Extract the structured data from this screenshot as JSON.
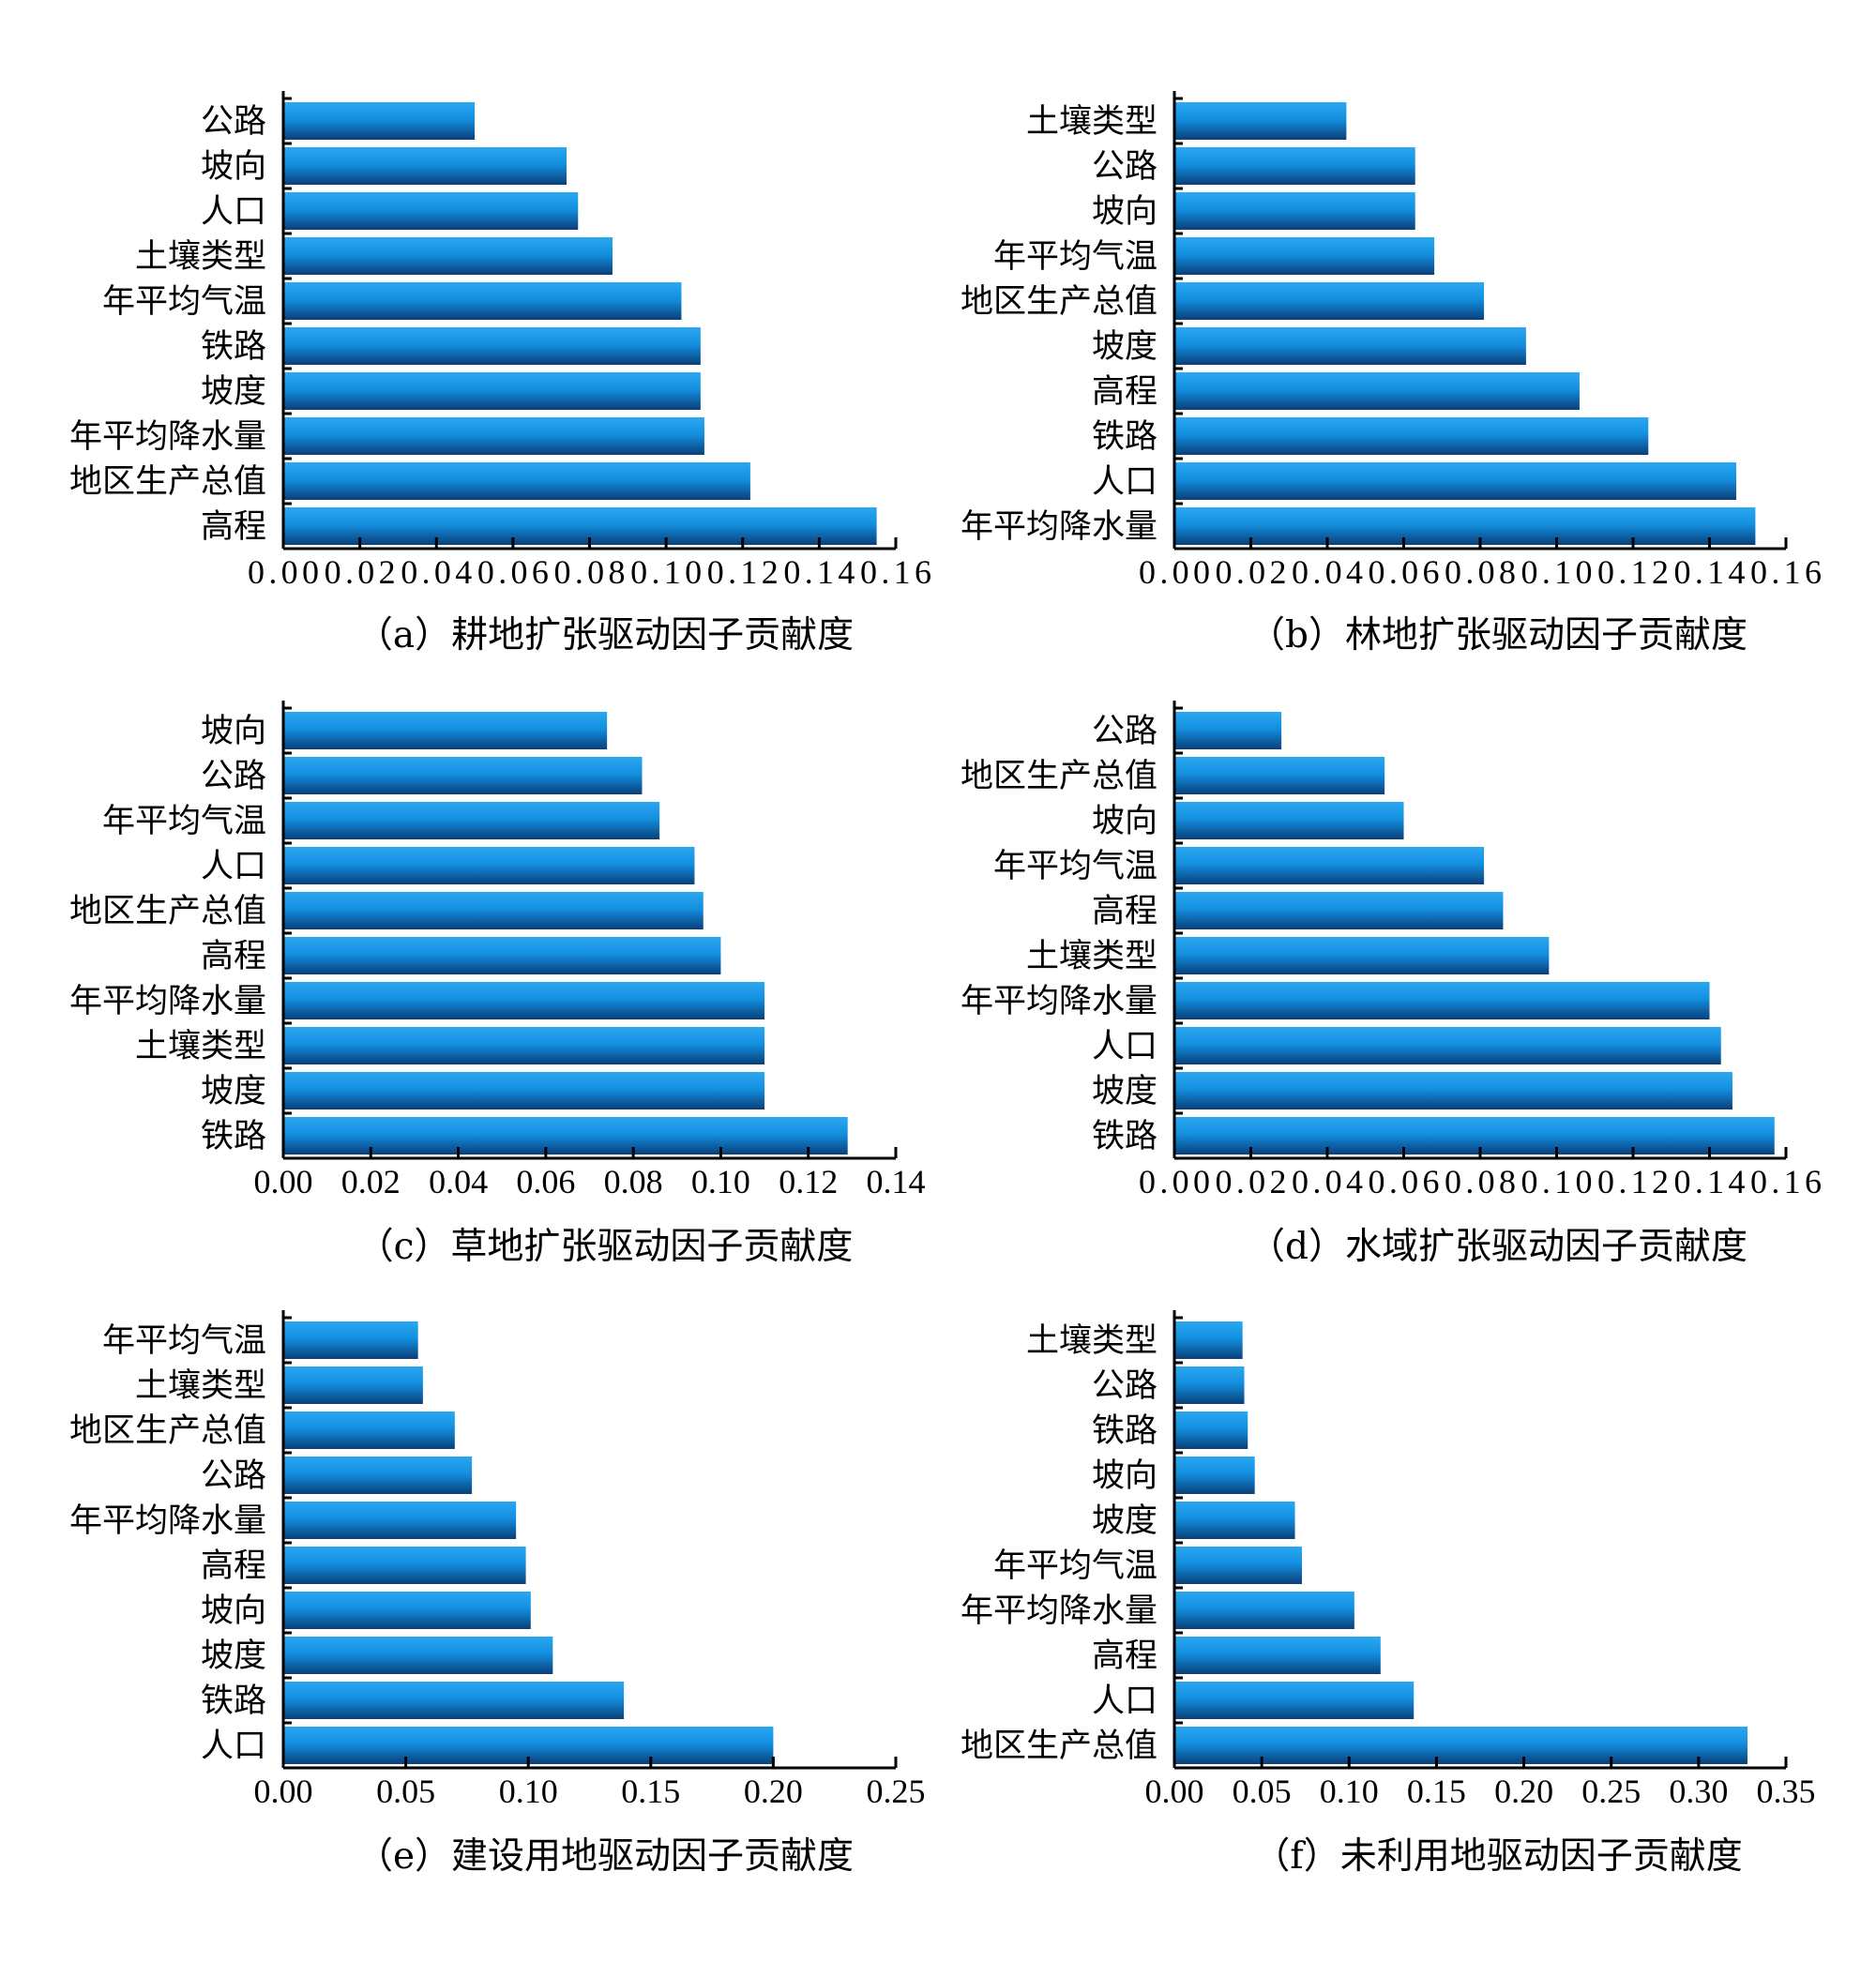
{
  "chart_data": [
    {
      "type": "bar",
      "orientation": "horizontal",
      "caption": "（a）耕地扩张驱动因子贡献度",
      "categories": [
        "公路",
        "坡向",
        "人口",
        "土壤类型",
        "年平均气温",
        "铁路",
        "坡度",
        "年平均降水量",
        "地区生产总值",
        "高程"
      ],
      "values": [
        0.05,
        0.074,
        0.077,
        0.086,
        0.104,
        0.109,
        0.109,
        0.11,
        0.122,
        0.155
      ],
      "xlim": [
        0,
        0.16
      ],
      "xticks": [
        "0.00",
        "0.02",
        "0.04",
        "0.06",
        "0.08",
        "0.10",
        "0.12",
        "0.14",
        "0.16"
      ]
    },
    {
      "type": "bar",
      "orientation": "horizontal",
      "caption": "（b）林地扩张驱动因子贡献度",
      "categories": [
        "土壤类型",
        "公路",
        "坡向",
        "年平均气温",
        "地区生产总值",
        "坡度",
        "高程",
        "铁路",
        "人口",
        "年平均降水量"
      ],
      "values": [
        0.045,
        0.063,
        0.063,
        0.068,
        0.081,
        0.092,
        0.106,
        0.124,
        0.147,
        0.152
      ],
      "xlim": [
        0,
        0.16
      ],
      "xticks": [
        "0.00",
        "0.02",
        "0.04",
        "0.06",
        "0.08",
        "0.10",
        "0.12",
        "0.14",
        "0.16"
      ]
    },
    {
      "type": "bar",
      "orientation": "horizontal",
      "caption": "（c）草地扩张驱动因子贡献度",
      "categories": [
        "坡向",
        "公路",
        "年平均气温",
        "人口",
        "地区生产总值",
        "高程",
        "年平均降水量",
        "土壤类型",
        "坡度",
        "铁路"
      ],
      "values": [
        0.074,
        0.082,
        0.086,
        0.094,
        0.096,
        0.1,
        0.11,
        0.11,
        0.11,
        0.129
      ],
      "xlim": [
        0,
        0.14
      ],
      "xticks": [
        "0.00",
        "0.02",
        "0.04",
        "0.06",
        "0.08",
        "0.10",
        "0.12",
        "0.14"
      ]
    },
    {
      "type": "bar",
      "orientation": "horizontal",
      "caption": "（d）水域扩张驱动因子贡献度",
      "categories": [
        "公路",
        "地区生产总值",
        "坡向",
        "年平均气温",
        "高程",
        "土壤类型",
        "年平均降水量",
        "人口",
        "坡度",
        "铁路"
      ],
      "values": [
        0.028,
        0.055,
        0.06,
        0.081,
        0.086,
        0.098,
        0.14,
        0.143,
        0.146,
        0.157
      ],
      "xlim": [
        0,
        0.16
      ],
      "xticks": [
        "0.00",
        "0.02",
        "0.04",
        "0.06",
        "0.08",
        "0.10",
        "0.12",
        "0.14",
        "0.16"
      ]
    },
    {
      "type": "bar",
      "orientation": "horizontal",
      "caption": "（e）建设用地驱动因子贡献度",
      "categories": [
        "年平均气温",
        "土壤类型",
        "地区生产总值",
        "公路",
        "年平均降水量",
        "高程",
        "坡向",
        "坡度",
        "铁路",
        "人口"
      ],
      "values": [
        0.055,
        0.057,
        0.07,
        0.077,
        0.095,
        0.099,
        0.101,
        0.11,
        0.139,
        0.2
      ],
      "xlim": [
        0,
        0.25
      ],
      "xticks": [
        "0.00",
        "0.05",
        "0.10",
        "0.15",
        "0.20",
        "0.25"
      ]
    },
    {
      "type": "bar",
      "orientation": "horizontal",
      "caption": "（f）未利用地驱动因子贡献度",
      "categories": [
        "土壤类型",
        "公路",
        "铁路",
        "坡向",
        "坡度",
        "年平均气温",
        "年平均降水量",
        "高程",
        "人口",
        "地区生产总值"
      ],
      "values": [
        0.039,
        0.04,
        0.042,
        0.046,
        0.069,
        0.073,
        0.103,
        0.118,
        0.137,
        0.328
      ],
      "xlim": [
        0,
        0.35
      ],
      "xticks": [
        "0.00",
        "0.05",
        "0.10",
        "0.15",
        "0.20",
        "0.25",
        "0.30",
        "0.35"
      ]
    }
  ],
  "style": {
    "bar_top_color": "#2aa8f0",
    "bar_mid_color": "#138fe0",
    "bar_bottom_color": "#0a3f7a",
    "axis_color": "#000000"
  }
}
